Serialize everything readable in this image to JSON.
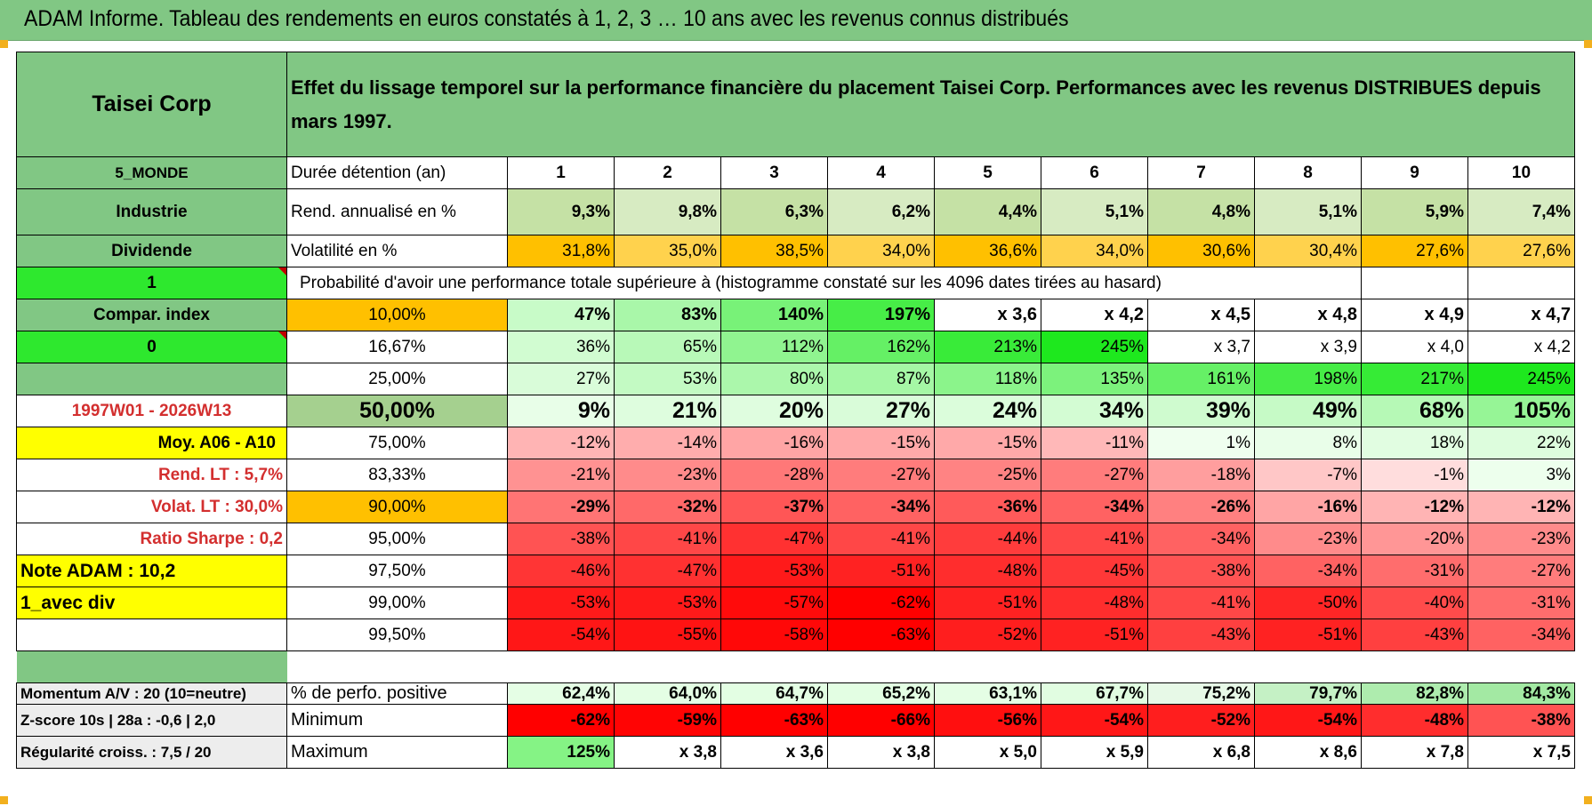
{
  "title": "ADAM Informe. Tableau des rendements en euros constatés à 1, 2, 3 … 10 ans avec les revenus connus distribués",
  "header": {
    "company": "Taisei Corp",
    "description": "Effet du lissage temporel sur la performance financière du placement Taisei Corp. Performances avec les revenus DISTRIBUES depuis mars 1997."
  },
  "left_labels": [
    "5_MONDE",
    "Industrie",
    "Dividende",
    "1",
    "Compar. index",
    "0",
    "",
    "1997W01 - 2026W13",
    "Moy. A06 - A10",
    "Rend. LT :   5,7%",
    "Volat. LT :   30,0%",
    "Ratio Sharpe :    0,2",
    "Note ADAM : 10,2",
    "1_avec div",
    ""
  ],
  "durations_label": "Durée détention (an)",
  "durations": [
    "1",
    "2",
    "3",
    "4",
    "5",
    "6",
    "7",
    "8",
    "9",
    "10"
  ],
  "rend": {
    "label": "Rend. annualisé en %",
    "values": [
      "9,3%",
      "9,8%",
      "6,3%",
      "6,2%",
      "4,4%",
      "5,1%",
      "4,8%",
      "5,1%",
      "5,9%",
      "7,4%"
    ]
  },
  "vol": {
    "label": "Volatilité en %",
    "values": [
      "31,8%",
      "35,0%",
      "38,5%",
      "34,0%",
      "36,6%",
      "34,0%",
      "30,6%",
      "30,4%",
      "27,6%",
      "27,6%"
    ]
  },
  "prob_title": "Probabilité d'avoir une performance totale supérieure à (histogramme constaté sur les 4096 dates tirées au hasard)",
  "quantiles": [
    {
      "label": "10,00%",
      "values": [
        "47%",
        "83%",
        "140%",
        "197%",
        "x 3,6",
        "x 4,2",
        "x 4,5",
        "x 4,8",
        "x 4,9",
        "x 4,7"
      ]
    },
    {
      "label": "16,67%",
      "values": [
        "36%",
        "65%",
        "112%",
        "162%",
        "213%",
        "245%",
        "x 3,7",
        "x 3,9",
        "x 4,0",
        "x 4,2"
      ]
    },
    {
      "label": "25,00%",
      "values": [
        "27%",
        "53%",
        "80%",
        "87%",
        "118%",
        "135%",
        "161%",
        "198%",
        "217%",
        "245%"
      ]
    },
    {
      "label": "50,00%",
      "values": [
        "9%",
        "21%",
        "20%",
        "27%",
        "24%",
        "34%",
        "39%",
        "49%",
        "68%",
        "105%"
      ]
    },
    {
      "label": "75,00%",
      "values": [
        "-12%",
        "-14%",
        "-16%",
        "-15%",
        "-15%",
        "-11%",
        "1%",
        "8%",
        "18%",
        "22%"
      ]
    },
    {
      "label": "83,33%",
      "values": [
        "-21%",
        "-23%",
        "-28%",
        "-27%",
        "-25%",
        "-27%",
        "-18%",
        "-7%",
        "-1%",
        "3%"
      ]
    },
    {
      "label": "90,00%",
      "values": [
        "-29%",
        "-32%",
        "-37%",
        "-34%",
        "-36%",
        "-34%",
        "-26%",
        "-16%",
        "-12%",
        "-12%"
      ]
    },
    {
      "label": "95,00%",
      "values": [
        "-38%",
        "-41%",
        "-47%",
        "-41%",
        "-44%",
        "-41%",
        "-34%",
        "-23%",
        "-20%",
        "-23%"
      ]
    },
    {
      "label": "97,50%",
      "values": [
        "-46%",
        "-47%",
        "-53%",
        "-51%",
        "-48%",
        "-45%",
        "-38%",
        "-34%",
        "-31%",
        "-27%"
      ]
    },
    {
      "label": "99,00%",
      "values": [
        "-53%",
        "-53%",
        "-57%",
        "-62%",
        "-51%",
        "-48%",
        "-41%",
        "-50%",
        "-40%",
        "-31%"
      ]
    },
    {
      "label": "99,50%",
      "values": [
        "-54%",
        "-55%",
        "-58%",
        "-63%",
        "-52%",
        "-51%",
        "-43%",
        "-51%",
        "-43%",
        "-34%"
      ]
    }
  ],
  "bottom_left": [
    "Momentum A/V : 20 (10=neutre)",
    "Z-score 10s | 28a : -0,6 | 2,0",
    "Régularité croiss. : 7,5 / 20"
  ],
  "stats": [
    {
      "label": "% de perfo. positive",
      "values": [
        "62,4%",
        "64,0%",
        "64,7%",
        "65,2%",
        "63,1%",
        "67,7%",
        "75,2%",
        "79,7%",
        "82,8%",
        "84,3%"
      ]
    },
    {
      "label": "Minimum",
      "values": [
        "-62%",
        "-59%",
        "-63%",
        "-66%",
        "-56%",
        "-54%",
        "-52%",
        "-54%",
        "-48%",
        "-38%"
      ]
    },
    {
      "label": "Maximum",
      "values": [
        "125%",
        "x 3,8",
        "x 3,6",
        "x 3,8",
        "x 5,0",
        "x 5,9",
        "x 6,8",
        "x 8,6",
        "x 7,8",
        "x 7,5"
      ]
    }
  ],
  "colors": {
    "header_green": "#81c784",
    "bright_green": "#2ee82e",
    "yellow": "#ffff00",
    "orange": "#ffc000",
    "red": "#ff0000",
    "label_red": "#d32f2f"
  }
}
